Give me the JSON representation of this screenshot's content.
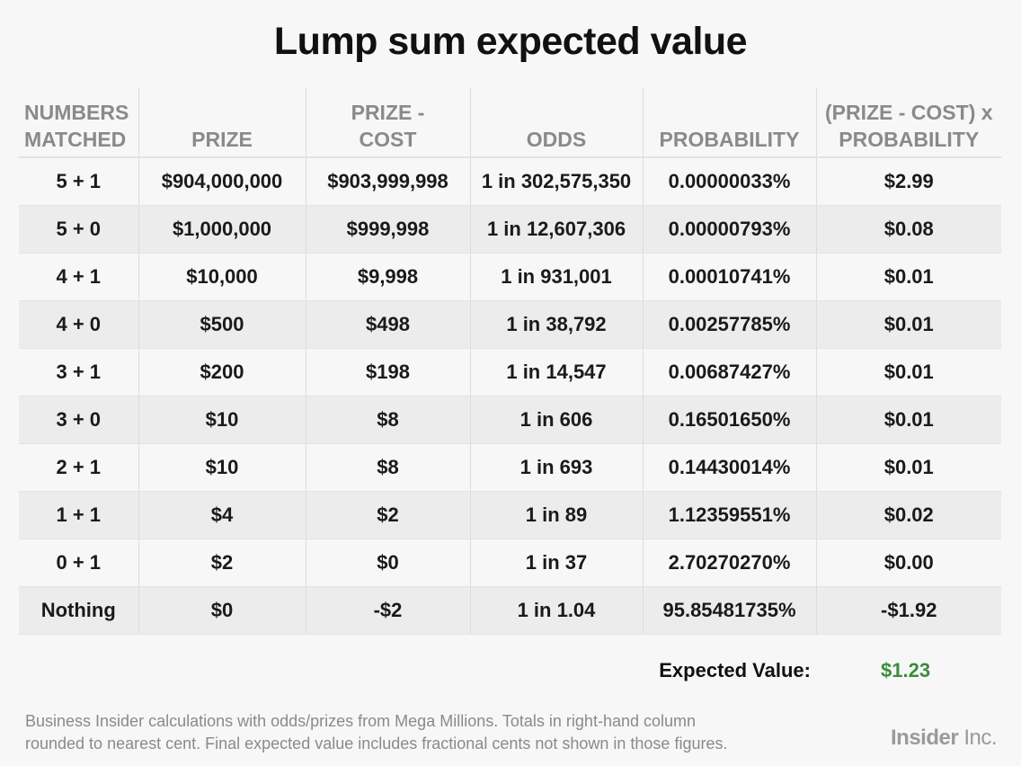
{
  "title": "Lump sum expected value",
  "headers": {
    "c0": [
      "NUMBERS",
      "MATCHED"
    ],
    "c1": [
      "",
      "PRIZE"
    ],
    "c2": [
      "PRIZE -",
      "COST"
    ],
    "c3": [
      "",
      "ODDS"
    ],
    "c4": [
      "",
      "PROBABILITY"
    ],
    "c5": [
      "(PRIZE - COST) x",
      "PROBABILITY"
    ]
  },
  "rows": [
    [
      "5 + 1",
      "$904,000,000",
      "$903,999,998",
      "1 in 302,575,350",
      "0.00000033%",
      "$2.99"
    ],
    [
      "5 + 0",
      "$1,000,000",
      "$999,998",
      "1 in 12,607,306",
      "0.00000793%",
      "$0.08"
    ],
    [
      "4 + 1",
      "$10,000",
      "$9,998",
      "1 in 931,001",
      "0.00010741%",
      "$0.01"
    ],
    [
      "4 + 0",
      "$500",
      "$498",
      "1 in 38,792",
      "0.00257785%",
      "$0.01"
    ],
    [
      "3 + 1",
      "$200",
      "$198",
      "1 in 14,547",
      "0.00687427%",
      "$0.01"
    ],
    [
      "3 + 0",
      "$10",
      "$8",
      "1 in 606",
      "0.16501650%",
      "$0.01"
    ],
    [
      "2 + 1",
      "$10",
      "$8",
      "1 in 693",
      "0.14430014%",
      "$0.01"
    ],
    [
      "1 + 1",
      "$4",
      "$2",
      "1 in 89",
      "1.12359551%",
      "$0.02"
    ],
    [
      "0 + 1",
      "$2",
      "$0",
      "1 in 37",
      "2.70270270%",
      "$0.00"
    ],
    [
      "Nothing",
      "$0",
      "-$2",
      "1 in 1.04",
      "95.85481735%",
      "-$1.92"
    ]
  ],
  "expected_value": {
    "label": "Expected Value:",
    "value": "$1.23"
  },
  "footnote": {
    "line1": "Business Insider calculations with odds/prizes from Mega Millions. Totals in right-hand column",
    "line2": "rounded to nearest cent. Final expected value includes fractional cents not shown in those figures."
  },
  "brand": {
    "bold": "Insider",
    "light": " Inc."
  },
  "colors": {
    "accent_green": "#3c8c3c",
    "header_gray": "#8a8a8a",
    "band": "#ececec"
  },
  "chart_data": {
    "type": "table",
    "title": "Lump sum expected value",
    "columns": [
      "NUMBERS MATCHED",
      "PRIZE",
      "PRIZE - COST",
      "ODDS",
      "PROBABILITY",
      "(PRIZE - COST) x PROBABILITY"
    ],
    "rows": [
      [
        "5 + 1",
        "$904,000,000",
        "$903,999,998",
        "1 in 302,575,350",
        "0.00000033%",
        "$2.99"
      ],
      [
        "5 + 0",
        "$1,000,000",
        "$999,998",
        "1 in 12,607,306",
        "0.00000793%",
        "$0.08"
      ],
      [
        "4 + 1",
        "$10,000",
        "$9,998",
        "1 in 931,001",
        "0.00010741%",
        "$0.01"
      ],
      [
        "4 + 0",
        "$500",
        "$498",
        "1 in 38,792",
        "0.00257785%",
        "$0.01"
      ],
      [
        "3 + 1",
        "$200",
        "$198",
        "1 in 14,547",
        "0.00687427%",
        "$0.01"
      ],
      [
        "3 + 0",
        "$10",
        "$8",
        "1 in 606",
        "0.16501650%",
        "$0.01"
      ],
      [
        "2 + 1",
        "$10",
        "$8",
        "1 in 693",
        "0.14430014%",
        "$0.01"
      ],
      [
        "1 + 1",
        "$4",
        "$2",
        "1 in 89",
        "1.12359551%",
        "$0.02"
      ],
      [
        "0 + 1",
        "$2",
        "$0",
        "1 in 37",
        "2.70270270%",
        "$0.00"
      ],
      [
        "Nothing",
        "$0",
        "-$2",
        "1 in 1.04",
        "95.85481735%",
        "-$1.92"
      ]
    ],
    "expected_value": "$1.23"
  }
}
